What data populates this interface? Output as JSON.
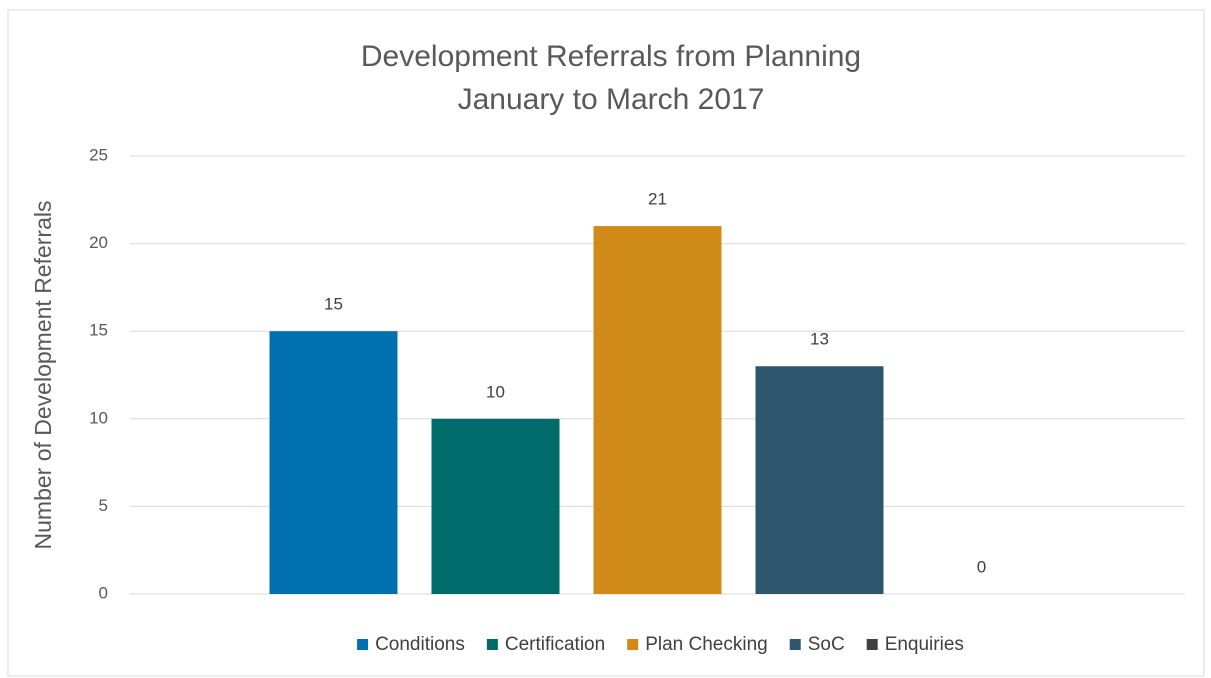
{
  "chart_data": {
    "type": "bar",
    "title": "Development Referrals from Planning",
    "subtitle": "January to March 2017",
    "y_label": "Number of Development Referrals",
    "categories": [
      null
    ],
    "series": [
      {
        "name": "Conditions",
        "color": "#0070b0",
        "values": [
          15
        ]
      },
      {
        "name": "Certification",
        "color": "#006b6b",
        "values": [
          10
        ]
      },
      {
        "name": "Plan Checking",
        "color": "#d08a18",
        "values": [
          21
        ]
      },
      {
        "name": "SoC",
        "color": "#2e566e",
        "values": [
          13
        ]
      },
      {
        "name": "Enquiries",
        "color": "#404040",
        "values": [
          0
        ]
      }
    ],
    "ylim": [
      0,
      25
    ],
    "yticks": [
      0,
      5,
      10,
      15,
      20,
      25
    ],
    "grid": true,
    "legend": "bottom"
  }
}
